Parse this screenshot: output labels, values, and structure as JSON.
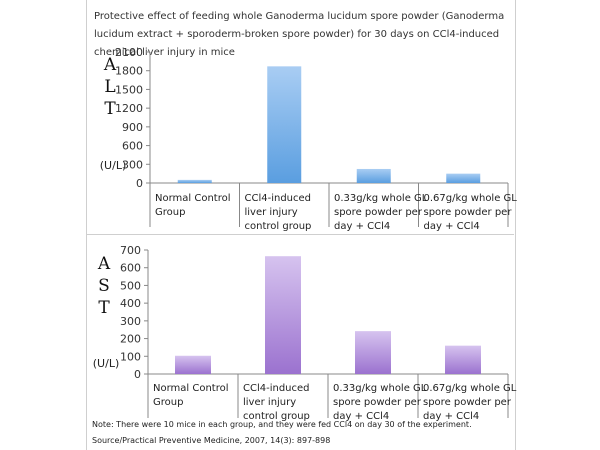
{
  "title": "Protective effect of feeding whole Ganoderma lucidum spore powder (Ganoderma lucidum extract + sporoderm-broken spore powder) for 30 days on CCl4-induced chemical liver injury in mice",
  "chart_data": [
    {
      "type": "bar",
      "metric_label": "ALT",
      "ylabel": "(U/L)",
      "ylim": [
        0,
        2100
      ],
      "yticks": [
        0,
        300,
        600,
        900,
        1200,
        1500,
        1800,
        2100
      ],
      "categories": [
        [
          "Normal Control",
          "Group"
        ],
        [
          "CCl4-induced",
          "liver injury",
          "control group"
        ],
        [
          "0.33g/kg whole GL",
          "spore powder per",
          "day + CCl4"
        ],
        [
          "0.67g/kg whole GL",
          "spore powder per",
          "day + CCl4"
        ]
      ],
      "values": [
        50,
        1870,
        225,
        150
      ],
      "color_top": "#a9cdf3",
      "color_bottom": "#5a9ee0"
    },
    {
      "type": "bar",
      "metric_label": "AST",
      "ylabel": "(U/L)",
      "ylim": [
        0,
        700
      ],
      "yticks": [
        0,
        100,
        200,
        300,
        400,
        500,
        600,
        700
      ],
      "categories": [
        [
          "Normal Control",
          "Group"
        ],
        [
          "CCl4-induced",
          "liver injury",
          "control group"
        ],
        [
          "0.33g/kg whole GL",
          "spore powder per",
          "day + CCl4"
        ],
        [
          "0.67g/kg whole GL",
          "spore powder per",
          "day + CCl4"
        ]
      ],
      "values": [
        103,
        665,
        242,
        160
      ],
      "color_top": "#d6c3ef",
      "color_bottom": "#9b72cf"
    }
  ],
  "notes": {
    "line1": "Note: There were 10 mice in each group, and they were fed CCl4 on day 30 of the experiment.",
    "line2": "Source/Practical Preventive Medicine, 2007, 14(3): 897-898"
  }
}
